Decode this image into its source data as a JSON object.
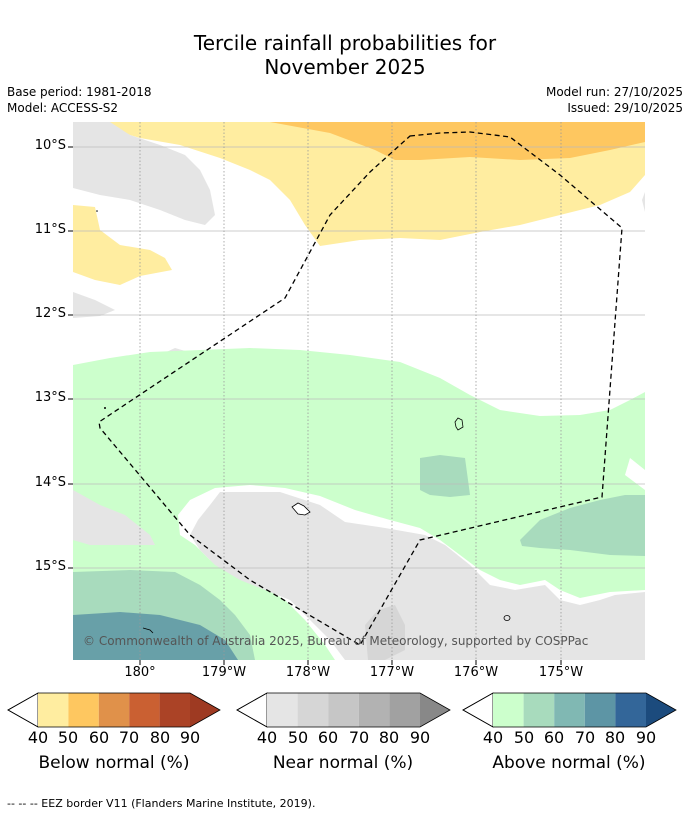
{
  "title_line1": "Tercile rainfall probabilities for",
  "title_line2": "November 2025",
  "base_period": "Base period: 1981-2018",
  "model": "Model: ACCESS-S2",
  "model_run": "Model run: 27/10/2025",
  "issued": "Issued: 29/10/2025",
  "lat_labels": [
    "10°S",
    "11°S",
    "12°S",
    "13°S",
    "14°S",
    "15°S"
  ],
  "lon_labels": [
    "180°",
    "179°W",
    "178°W",
    "177°W",
    "176°W",
    "175°W"
  ],
  "copyright": "© Commonwealth of Australia 2025, Bureau of Meteorology, supported by COSPPac",
  "colorbars": [
    {
      "label": "Below normal (%)",
      "colors": [
        "#ffeda0",
        "#fec760",
        "#e0914a",
        "#ca6032",
        "#ab4326",
        "#9e3a22"
      ]
    },
    {
      "label": "Near normal (%)",
      "colors": [
        "#e5e5e5",
        "#d6d6d6",
        "#c6c6c6",
        "#b2b2b2",
        "#a1a1a1",
        "#888888"
      ]
    },
    {
      "label": "Above normal (%)",
      "colors": [
        "#ccffcc",
        "#a8dbbd",
        "#80b8b3",
        "#5d95a5",
        "#336699",
        "#1c4b7d"
      ]
    }
  ],
  "cb_ticks": [
    "40",
    "50",
    "60",
    "70",
    "80",
    "90"
  ],
  "footer": "--  --  -- EEZ border V11 (Flanders Marine Institute, 2019)."
}
